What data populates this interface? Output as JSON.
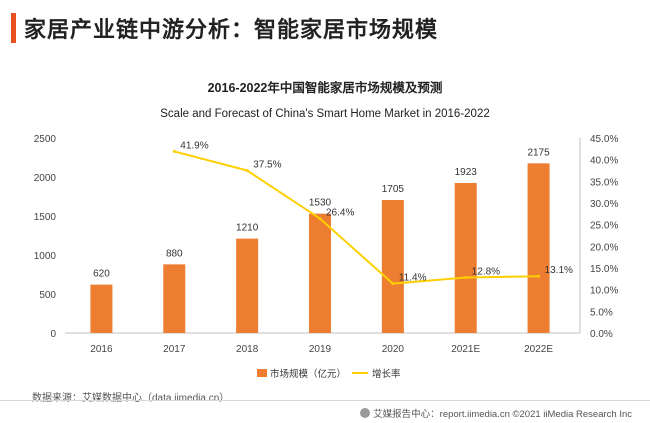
{
  "header": {
    "title": "家居产业链中游分析：智能家居市场规模",
    "accent_color": "#e8511e"
  },
  "chart_data": {
    "type": "bar",
    "title": "2016-2022年中国智能家居市场规模及预测",
    "subtitle": "Scale and Forecast of China's Smart Home Market in 2016-2022",
    "categories": [
      "2016",
      "2017",
      "2018",
      "2019",
      "2020",
      "2021E",
      "2022E"
    ],
    "series": [
      {
        "name": "市场规模（亿元）",
        "type": "bar",
        "axis": "left",
        "color": "#ec7d31",
        "values": [
          620,
          880,
          1210,
          1530,
          1705,
          1923,
          2175
        ],
        "labels": [
          "620",
          "880",
          "1210",
          "1530",
          "1705",
          "1923",
          "2175"
        ]
      },
      {
        "name": "增长率",
        "type": "line",
        "axis": "right",
        "color": "#ffd000",
        "values": [
          null,
          41.9,
          37.5,
          26.4,
          11.4,
          12.8,
          13.1
        ],
        "labels": [
          "",
          "41.9%",
          "37.5%",
          "26.4%",
          "11.4%",
          "12.8%",
          "13.1%"
        ]
      }
    ],
    "y_left": {
      "min": 0,
      "max": 2500,
      "ticks": [
        "0",
        "500",
        "1000",
        "1500",
        "2000",
        "2500"
      ],
      "tick_values": [
        0,
        500,
        1000,
        1500,
        2000,
        2500
      ]
    },
    "y_right": {
      "min": 0,
      "max": 45,
      "ticks": [
        "0.0%",
        "5.0%",
        "10.0%",
        "15.0%",
        "20.0%",
        "25.0%",
        "30.0%",
        "35.0%",
        "40.0%",
        "45.0%"
      ],
      "tick_values": [
        0,
        5,
        10,
        15,
        20,
        25,
        30,
        35,
        40,
        45
      ]
    },
    "legend_position": "bottom-center",
    "grid": false
  },
  "footer": {
    "source": "数据来源：艾媒数据中心（data.iimedia.cn）",
    "credit": "艾媒报告中心：report.iimedia.cn  ©2021  iiMedia Research  Inc"
  }
}
